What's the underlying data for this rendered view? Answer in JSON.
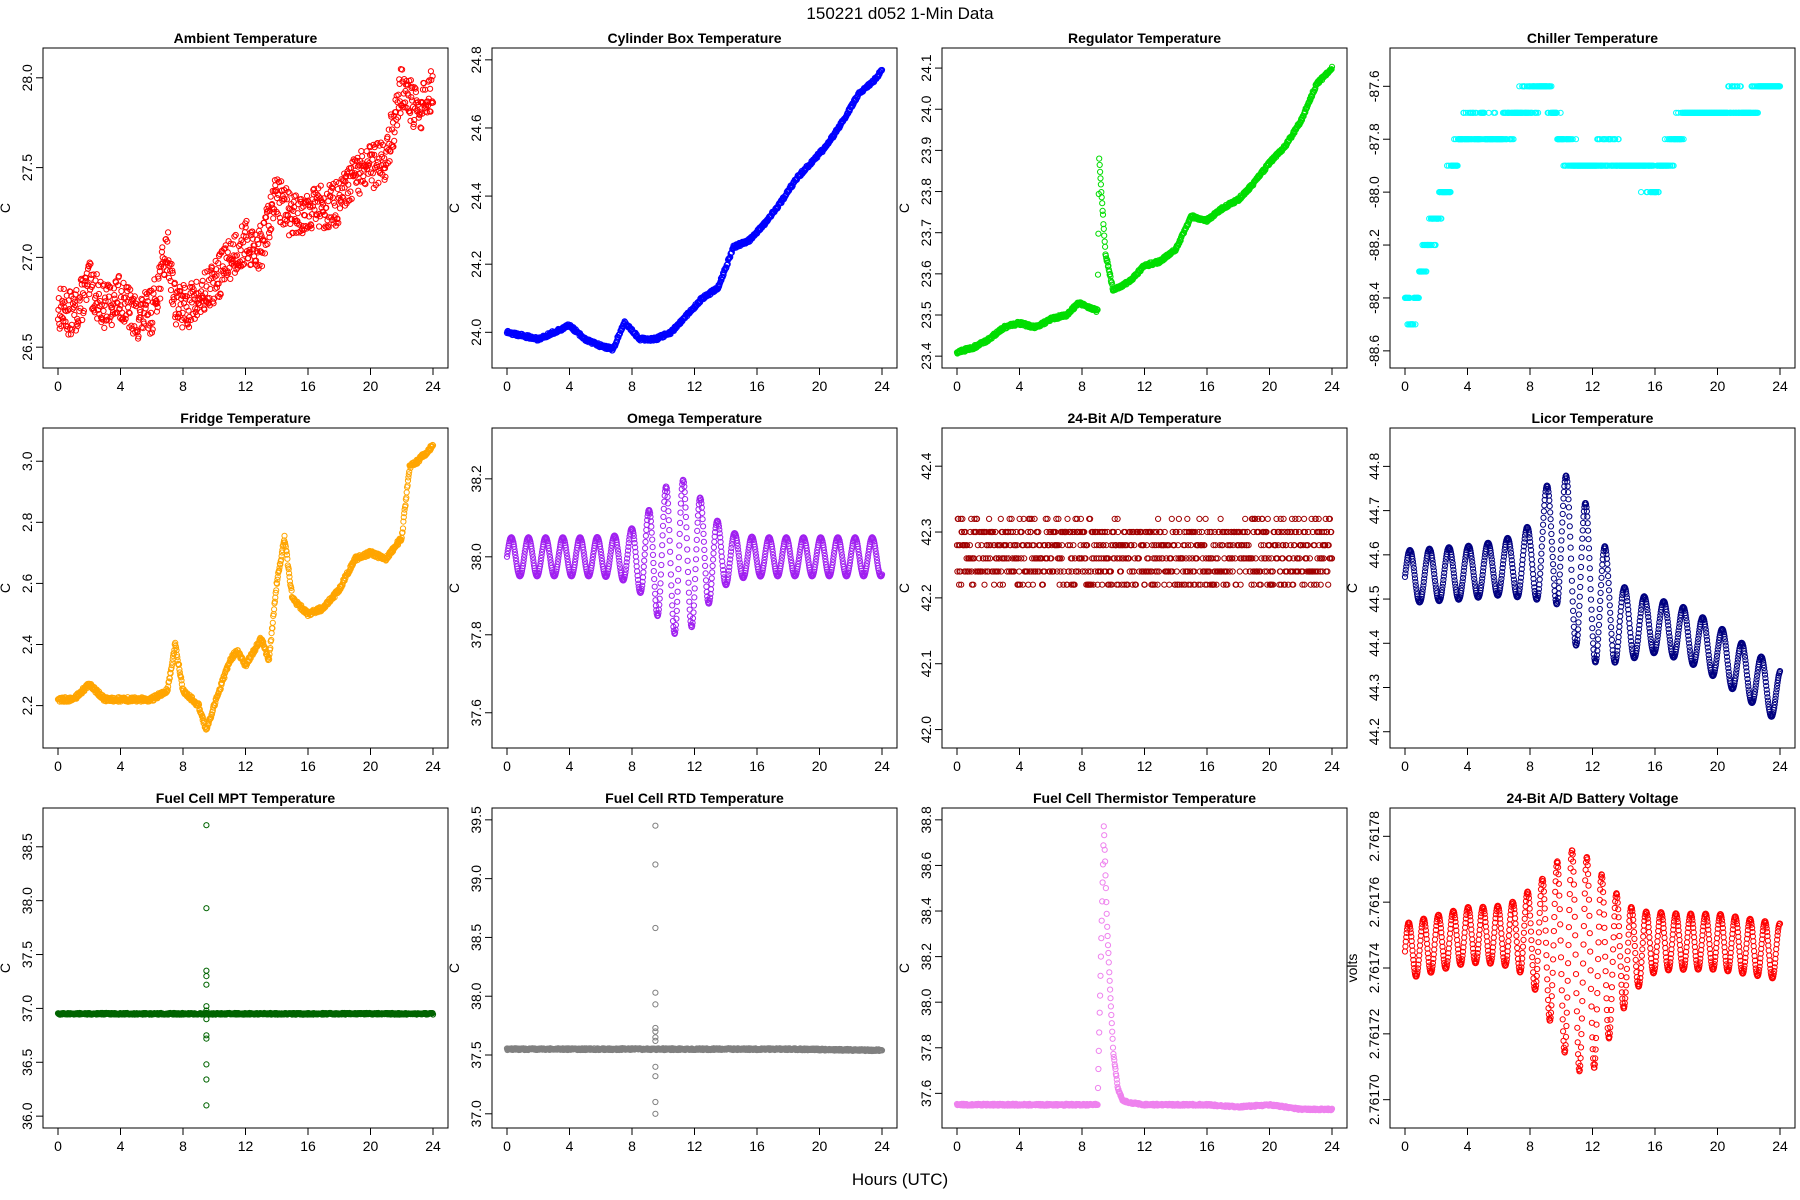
{
  "header": {
    "title": "150221    d052    1-Min Data",
    "xlabel": "Hours (UTC)"
  },
  "chart_data": [
    {
      "type": "scatter",
      "title": "Ambient Temperature",
      "ylabel": "C",
      "color": "#ff0000",
      "xlim": [
        0,
        24
      ],
      "ylim": [
        26.45,
        28.1
      ],
      "xticks": [
        0,
        4,
        8,
        12,
        16,
        20,
        24
      ],
      "xtick_labels": [
        "0",
        "4",
        "8",
        "12",
        "16",
        "20",
        "24"
      ],
      "yticks": [
        26.5,
        27.0,
        27.5,
        28.0
      ],
      "ytick_labels": [
        "26.5",
        "27.0",
        "27.5",
        "28.0"
      ],
      "series": [
        {
          "name": "Ambient Temperature",
          "x": [
            0,
            1,
            2,
            3,
            4,
            5,
            6,
            7,
            7.5,
            8,
            9,
            10,
            11,
            12,
            13,
            14,
            15,
            16,
            17,
            18,
            19,
            20,
            21,
            22,
            23,
            24
          ],
          "y": [
            26.72,
            26.68,
            26.85,
            26.72,
            26.78,
            26.66,
            26.7,
            27.05,
            26.75,
            26.72,
            26.76,
            26.85,
            27.0,
            27.08,
            27.05,
            27.35,
            27.22,
            27.28,
            27.28,
            27.3,
            27.45,
            27.5,
            27.55,
            27.95,
            27.8,
            27.95
          ],
          "noise": 0.25
        }
      ]
    },
    {
      "type": "scatter",
      "title": "Cylinder Box Temperature",
      "ylabel": "C",
      "color": "#0000ff",
      "xlim": [
        0,
        24
      ],
      "ylim": [
        23.93,
        24.8
      ],
      "xticks": [
        0,
        4,
        8,
        12,
        16,
        20,
        24
      ],
      "xtick_labels": [
        "0",
        "4",
        "8",
        "12",
        "16",
        "20",
        "24"
      ],
      "yticks": [
        24.0,
        24.2,
        24.4,
        24.6,
        24.8
      ],
      "ytick_labels": [
        "24.0",
        "24.2",
        "24.4",
        "24.6",
        "24.8"
      ],
      "series": [
        {
          "name": "Cylinder Box Temperature",
          "x": [
            0,
            1,
            2,
            3,
            4,
            5,
            6,
            6.8,
            7.5,
            8.5,
            9.5,
            10.5,
            11.5,
            12.5,
            13.5,
            14.5,
            15.5,
            16.5,
            17.5,
            18.5,
            19.5,
            20.5,
            21.5,
            22.5,
            23.5,
            24
          ],
          "y": [
            24.0,
            23.99,
            23.98,
            24.0,
            24.02,
            23.98,
            23.96,
            23.95,
            24.03,
            23.98,
            23.98,
            24.0,
            24.05,
            24.1,
            24.13,
            24.25,
            24.27,
            24.32,
            24.38,
            24.45,
            24.5,
            24.55,
            24.62,
            24.7,
            24.74,
            24.77
          ],
          "noise": 0.01
        }
      ]
    },
    {
      "type": "scatter",
      "title": "Regulator Temperature",
      "ylabel": "C",
      "color": "#00dd00",
      "xlim": [
        0,
        24
      ],
      "ylim": [
        23.4,
        24.12
      ],
      "xticks": [
        0,
        4,
        8,
        12,
        16,
        20,
        24
      ],
      "xtick_labels": [
        "0",
        "4",
        "8",
        "12",
        "16",
        "20",
        "24"
      ],
      "yticks": [
        23.4,
        23.5,
        23.6,
        23.7,
        23.8,
        23.9,
        24.0,
        24.1
      ],
      "ytick_labels": [
        "23.4",
        "23.5",
        "23.6",
        "23.7",
        "23.8",
        "23.9",
        "24.0",
        "24.1"
      ],
      "series": [
        {
          "name": "Regulator Temperature",
          "x": [
            0,
            1,
            2,
            3,
            4,
            5,
            6,
            7,
            7.8,
            9.0,
            9.1,
            9.5,
            10,
            11,
            12,
            13,
            14,
            15,
            16,
            17,
            18,
            19,
            20,
            21,
            22,
            23,
            24
          ],
          "y": [
            23.41,
            23.42,
            23.44,
            23.47,
            23.48,
            23.47,
            23.49,
            23.5,
            23.53,
            23.51,
            23.88,
            23.65,
            23.56,
            23.58,
            23.62,
            23.63,
            23.66,
            23.74,
            23.73,
            23.76,
            23.78,
            23.82,
            23.87,
            23.91,
            23.97,
            24.06,
            24.1
          ],
          "noise": 0.008
        }
      ]
    },
    {
      "type": "scatter",
      "title": "Chiller Temperature",
      "ylabel": "",
      "color": "#00ffff",
      "xlim": [
        0,
        24
      ],
      "ylim": [
        -88.62,
        -87.5
      ],
      "xticks": [
        0,
        4,
        8,
        12,
        16,
        20,
        24
      ],
      "xtick_labels": [
        "0",
        "4",
        "8",
        "12",
        "16",
        "20",
        "24"
      ],
      "yticks": [
        -88.6,
        -88.4,
        -88.2,
        -88.0,
        -87.8,
        -87.6
      ],
      "ytick_labels": [
        "-88.6",
        "-88.4",
        "-88.2",
        "-88.0",
        "-87.8",
        "-87.6"
      ],
      "series": [
        {
          "name": "Chiller Temperature",
          "x": [
            0,
            0.5,
            1,
            1.5,
            2,
            2.5,
            3,
            4,
            5,
            6,
            7,
            8,
            9,
            10,
            11,
            12,
            13,
            14,
            15,
            16,
            17,
            18,
            19,
            20,
            21,
            22,
            23,
            24
          ],
          "y": [
            -88.4,
            -88.5,
            -88.3,
            -88.2,
            -88.1,
            -88.0,
            -87.9,
            -87.75,
            -87.75,
            -87.8,
            -87.7,
            -87.65,
            -87.6,
            -87.8,
            -87.9,
            -87.9,
            -87.85,
            -87.9,
            -87.9,
            -87.95,
            -87.85,
            -87.7,
            -87.7,
            -87.7,
            -87.65,
            -87.7,
            -87.6,
            -87.6
          ],
          "noise": 0.1,
          "quantize": 0.1
        }
      ]
    },
    {
      "type": "scatter",
      "title": "Fridge Temperature",
      "ylabel": "C",
      "color": "#ffa500",
      "xlim": [
        0,
        24
      ],
      "ylim": [
        2.1,
        3.07
      ],
      "xticks": [
        0,
        4,
        8,
        12,
        16,
        20,
        24
      ],
      "xtick_labels": [
        "0",
        "4",
        "8",
        "12",
        "16",
        "20",
        "24"
      ],
      "yticks": [
        2.2,
        2.4,
        2.6,
        2.8,
        3.0
      ],
      "ytick_labels": [
        "2.2",
        "2.4",
        "2.6",
        "2.8",
        "3.0"
      ],
      "series": [
        {
          "name": "Fridge Temperature",
          "x": [
            0,
            1,
            2,
            3,
            4,
            5,
            6,
            7,
            7.5,
            8,
            9,
            9.5,
            10,
            11,
            11.5,
            12,
            13,
            13.5,
            14,
            14.5,
            15,
            16,
            17,
            18,
            19,
            20,
            21,
            22,
            22.5,
            23,
            24
          ],
          "y": [
            2.22,
            2.22,
            2.27,
            2.22,
            2.22,
            2.22,
            2.22,
            2.25,
            2.4,
            2.25,
            2.2,
            2.12,
            2.2,
            2.35,
            2.38,
            2.33,
            2.42,
            2.35,
            2.6,
            2.75,
            2.55,
            2.5,
            2.52,
            2.58,
            2.68,
            2.7,
            2.68,
            2.75,
            2.98,
            3.0,
            3.05
          ],
          "noise": 0.015
        }
      ]
    },
    {
      "type": "scatter",
      "title": "Omega Temperature",
      "ylabel": "C",
      "color": "#a020f0",
      "xlim": [
        0,
        24
      ],
      "ylim": [
        37.54,
        38.3
      ],
      "xticks": [
        0,
        4,
        8,
        12,
        16,
        20,
        24
      ],
      "xtick_labels": [
        "0",
        "4",
        "8",
        "12",
        "16",
        "20",
        "24"
      ],
      "yticks": [
        37.6,
        37.8,
        38.0,
        38.2
      ],
      "ytick_labels": [
        "37.6",
        "37.8",
        "38.0",
        "38.2"
      ],
      "series": [
        {
          "name": "Omega Temperature",
          "x": [
            0,
            2,
            4,
            6,
            8,
            9,
            9.5,
            10,
            11,
            12,
            13,
            14,
            16,
            18,
            20,
            22,
            24
          ],
          "y": [
            38.0,
            38.0,
            38.0,
            38.0,
            38.0,
            38.0,
            38.0,
            38.0,
            38.0,
            38.0,
            38.0,
            38.0,
            38.0,
            38.0,
            38.0,
            38.0,
            38.0
          ],
          "osc": {
            "base": 0.05,
            "bump_center": 11,
            "bump_width": 2.2,
            "bump_amp": 0.15,
            "period": 1.1
          }
        }
      ]
    },
    {
      "type": "scatter",
      "title": "24-Bit A/D Temperature",
      "ylabel": "C",
      "color": "#a00000",
      "xlim": [
        0,
        24
      ],
      "ylim": [
        41.99,
        42.44
      ],
      "xticks": [
        0,
        4,
        8,
        12,
        16,
        20,
        24
      ],
      "xtick_labels": [
        "0",
        "4",
        "8",
        "12",
        "16",
        "20",
        "24"
      ],
      "yticks": [
        42.0,
        42.1,
        42.2,
        42.3,
        42.4
      ],
      "ytick_labels": [
        "42.0",
        "42.1",
        "42.2",
        "42.3",
        "42.4"
      ],
      "series": [
        {
          "name": "24-Bit A/D Temperature",
          "x": [
            0,
            6,
            12,
            18,
            24
          ],
          "y": [
            42.27,
            42.27,
            42.26,
            42.27,
            42.27
          ],
          "noise": 0.1,
          "quantize": 0.02
        }
      ]
    },
    {
      "type": "scatter",
      "title": "Licor Temperature",
      "ylabel": "C",
      "color": "#000080",
      "xlim": [
        0,
        24
      ],
      "ylim": [
        44.19,
        44.86
      ],
      "xticks": [
        0,
        4,
        8,
        12,
        16,
        20,
        24
      ],
      "xtick_labels": [
        "0",
        "4",
        "8",
        "12",
        "16",
        "20",
        "24"
      ],
      "yticks": [
        44.2,
        44.3,
        44.4,
        44.5,
        44.6,
        44.7,
        44.8
      ],
      "ytick_labels": [
        "44.2",
        "44.3",
        "44.4",
        "44.5",
        "44.6",
        "44.7",
        "44.8"
      ],
      "series": [
        {
          "name": "Licor Temperature",
          "x": [
            0,
            4,
            8,
            9.5,
            12,
            14,
            16,
            18,
            20,
            22,
            24
          ],
          "y": [
            44.55,
            44.56,
            44.58,
            44.65,
            44.52,
            44.44,
            44.44,
            44.42,
            44.38,
            44.33,
            44.28
          ],
          "osc": {
            "base": 0.06,
            "bump_center": 11,
            "bump_width": 2.5,
            "bump_amp": 0.12,
            "period": 1.25
          }
        }
      ]
    },
    {
      "type": "scatter",
      "title": "Fuel Cell MPT Temperature",
      "ylabel": "C",
      "color": "#006400",
      "xlim": [
        0,
        24
      ],
      "ylim": [
        36.0,
        38.75
      ],
      "xticks": [
        0,
        4,
        8,
        12,
        16,
        20,
        24
      ],
      "xtick_labels": [
        "0",
        "4",
        "8",
        "12",
        "16",
        "20",
        "24"
      ],
      "yticks": [
        36.0,
        36.5,
        37.0,
        37.5,
        38.0,
        38.5
      ],
      "ytick_labels": [
        "36.0",
        "36.5",
        "37.0",
        "37.5",
        "38.0",
        "38.5"
      ],
      "series": [
        {
          "name": "Fuel Cell MPT Temperature",
          "x": [
            0,
            6,
            12,
            18,
            24
          ],
          "y": [
            36.95,
            36.95,
            36.95,
            36.95,
            36.95
          ],
          "noise": 0.015
        }
      ],
      "outliers": {
        "x": 9.5,
        "y": [
          38.7,
          37.93,
          37.35,
          37.3,
          37.22,
          37.02,
          36.98,
          36.9,
          36.75,
          36.72,
          36.48,
          36.34,
          36.1
        ]
      }
    },
    {
      "type": "scatter",
      "title": "Fuel Cell RTD Temperature",
      "ylabel": "C",
      "color": "#808080",
      "xlim": [
        0,
        24
      ],
      "ylim": [
        36.98,
        39.5
      ],
      "xticks": [
        0,
        4,
        8,
        12,
        16,
        20,
        24
      ],
      "xtick_labels": [
        "0",
        "4",
        "8",
        "12",
        "16",
        "20",
        "24"
      ],
      "yticks": [
        37.0,
        37.5,
        38.0,
        38.5,
        39.0,
        39.5
      ],
      "ytick_labels": [
        "37.0",
        "37.5",
        "38.0",
        "38.5",
        "39.0",
        "39.5"
      ],
      "series": [
        {
          "name": "Fuel Cell RTD Temperature",
          "x": [
            0,
            6,
            12,
            18,
            24
          ],
          "y": [
            37.55,
            37.55,
            37.55,
            37.55,
            37.54
          ],
          "noise": 0.015
        }
      ],
      "outliers": {
        "x": 9.5,
        "y": [
          39.45,
          39.12,
          38.58,
          38.03,
          37.93,
          37.73,
          37.7,
          37.65,
          37.62,
          37.4,
          37.32,
          37.1,
          37.0
        ]
      }
    },
    {
      "type": "scatter",
      "title": "Fuel Cell Thermistor Temperature",
      "ylabel": "C",
      "color": "#ee82ee",
      "xlim": [
        0,
        24
      ],
      "ylim": [
        37.5,
        38.8
      ],
      "xticks": [
        0,
        4,
        8,
        12,
        16,
        20,
        24
      ],
      "xtick_labels": [
        "0",
        "4",
        "8",
        "12",
        "16",
        "20",
        "24"
      ],
      "yticks": [
        37.6,
        37.8,
        38.0,
        38.2,
        38.4,
        38.6,
        38.8
      ],
      "ytick_labels": [
        "37.6",
        "37.8",
        "38.0",
        "38.2",
        "38.4",
        "38.6",
        "38.8"
      ],
      "series": [
        {
          "name": "Fuel Cell Thermistor Temperature",
          "x": [
            0,
            2,
            4,
            6,
            8,
            9.0,
            9.4,
            9.6,
            9.8,
            10.0,
            10.3,
            10.6,
            11,
            12,
            14,
            16,
            18,
            20,
            22,
            24
          ],
          "y": [
            37.55,
            37.55,
            37.55,
            37.55,
            37.55,
            37.55,
            38.78,
            38.35,
            38.05,
            37.78,
            37.62,
            37.57,
            37.56,
            37.55,
            37.55,
            37.55,
            37.54,
            37.55,
            37.53,
            37.53
          ],
          "noise": 0.008
        }
      ]
    },
    {
      "type": "scatter",
      "title": "24-Bit A/D Battery Voltage",
      "ylabel": "volts",
      "color": "#ff0000",
      "xlim": [
        0,
        24
      ],
      "ylim": [
        2.761695,
        2.761785
      ],
      "xticks": [
        0,
        4,
        8,
        12,
        16,
        20,
        24
      ],
      "xtick_labels": [
        "0",
        "4",
        "8",
        "12",
        "16",
        "20",
        "24"
      ],
      "yticks": [
        2.7617,
        2.76172,
        2.76174,
        2.76176,
        2.76178
      ],
      "ytick_labels": [
        "2.76170",
        "2.76172",
        "2.76174",
        "2.76176",
        "2.76178"
      ],
      "series": [
        {
          "name": "24-Bit A/D Battery Voltage",
          "x": [
            0,
            4,
            8,
            12,
            16,
            20,
            24
          ],
          "y": [
            2.761745,
            2.76175,
            2.76175,
            2.76174,
            2.761748,
            2.761748,
            2.761745
          ],
          "osc": {
            "base": 8.5e-06,
            "bump_center": 11.2,
            "bump_width": 2.6,
            "bump_amp": 2.5e-05,
            "period": 0.95
          }
        }
      ]
    }
  ]
}
